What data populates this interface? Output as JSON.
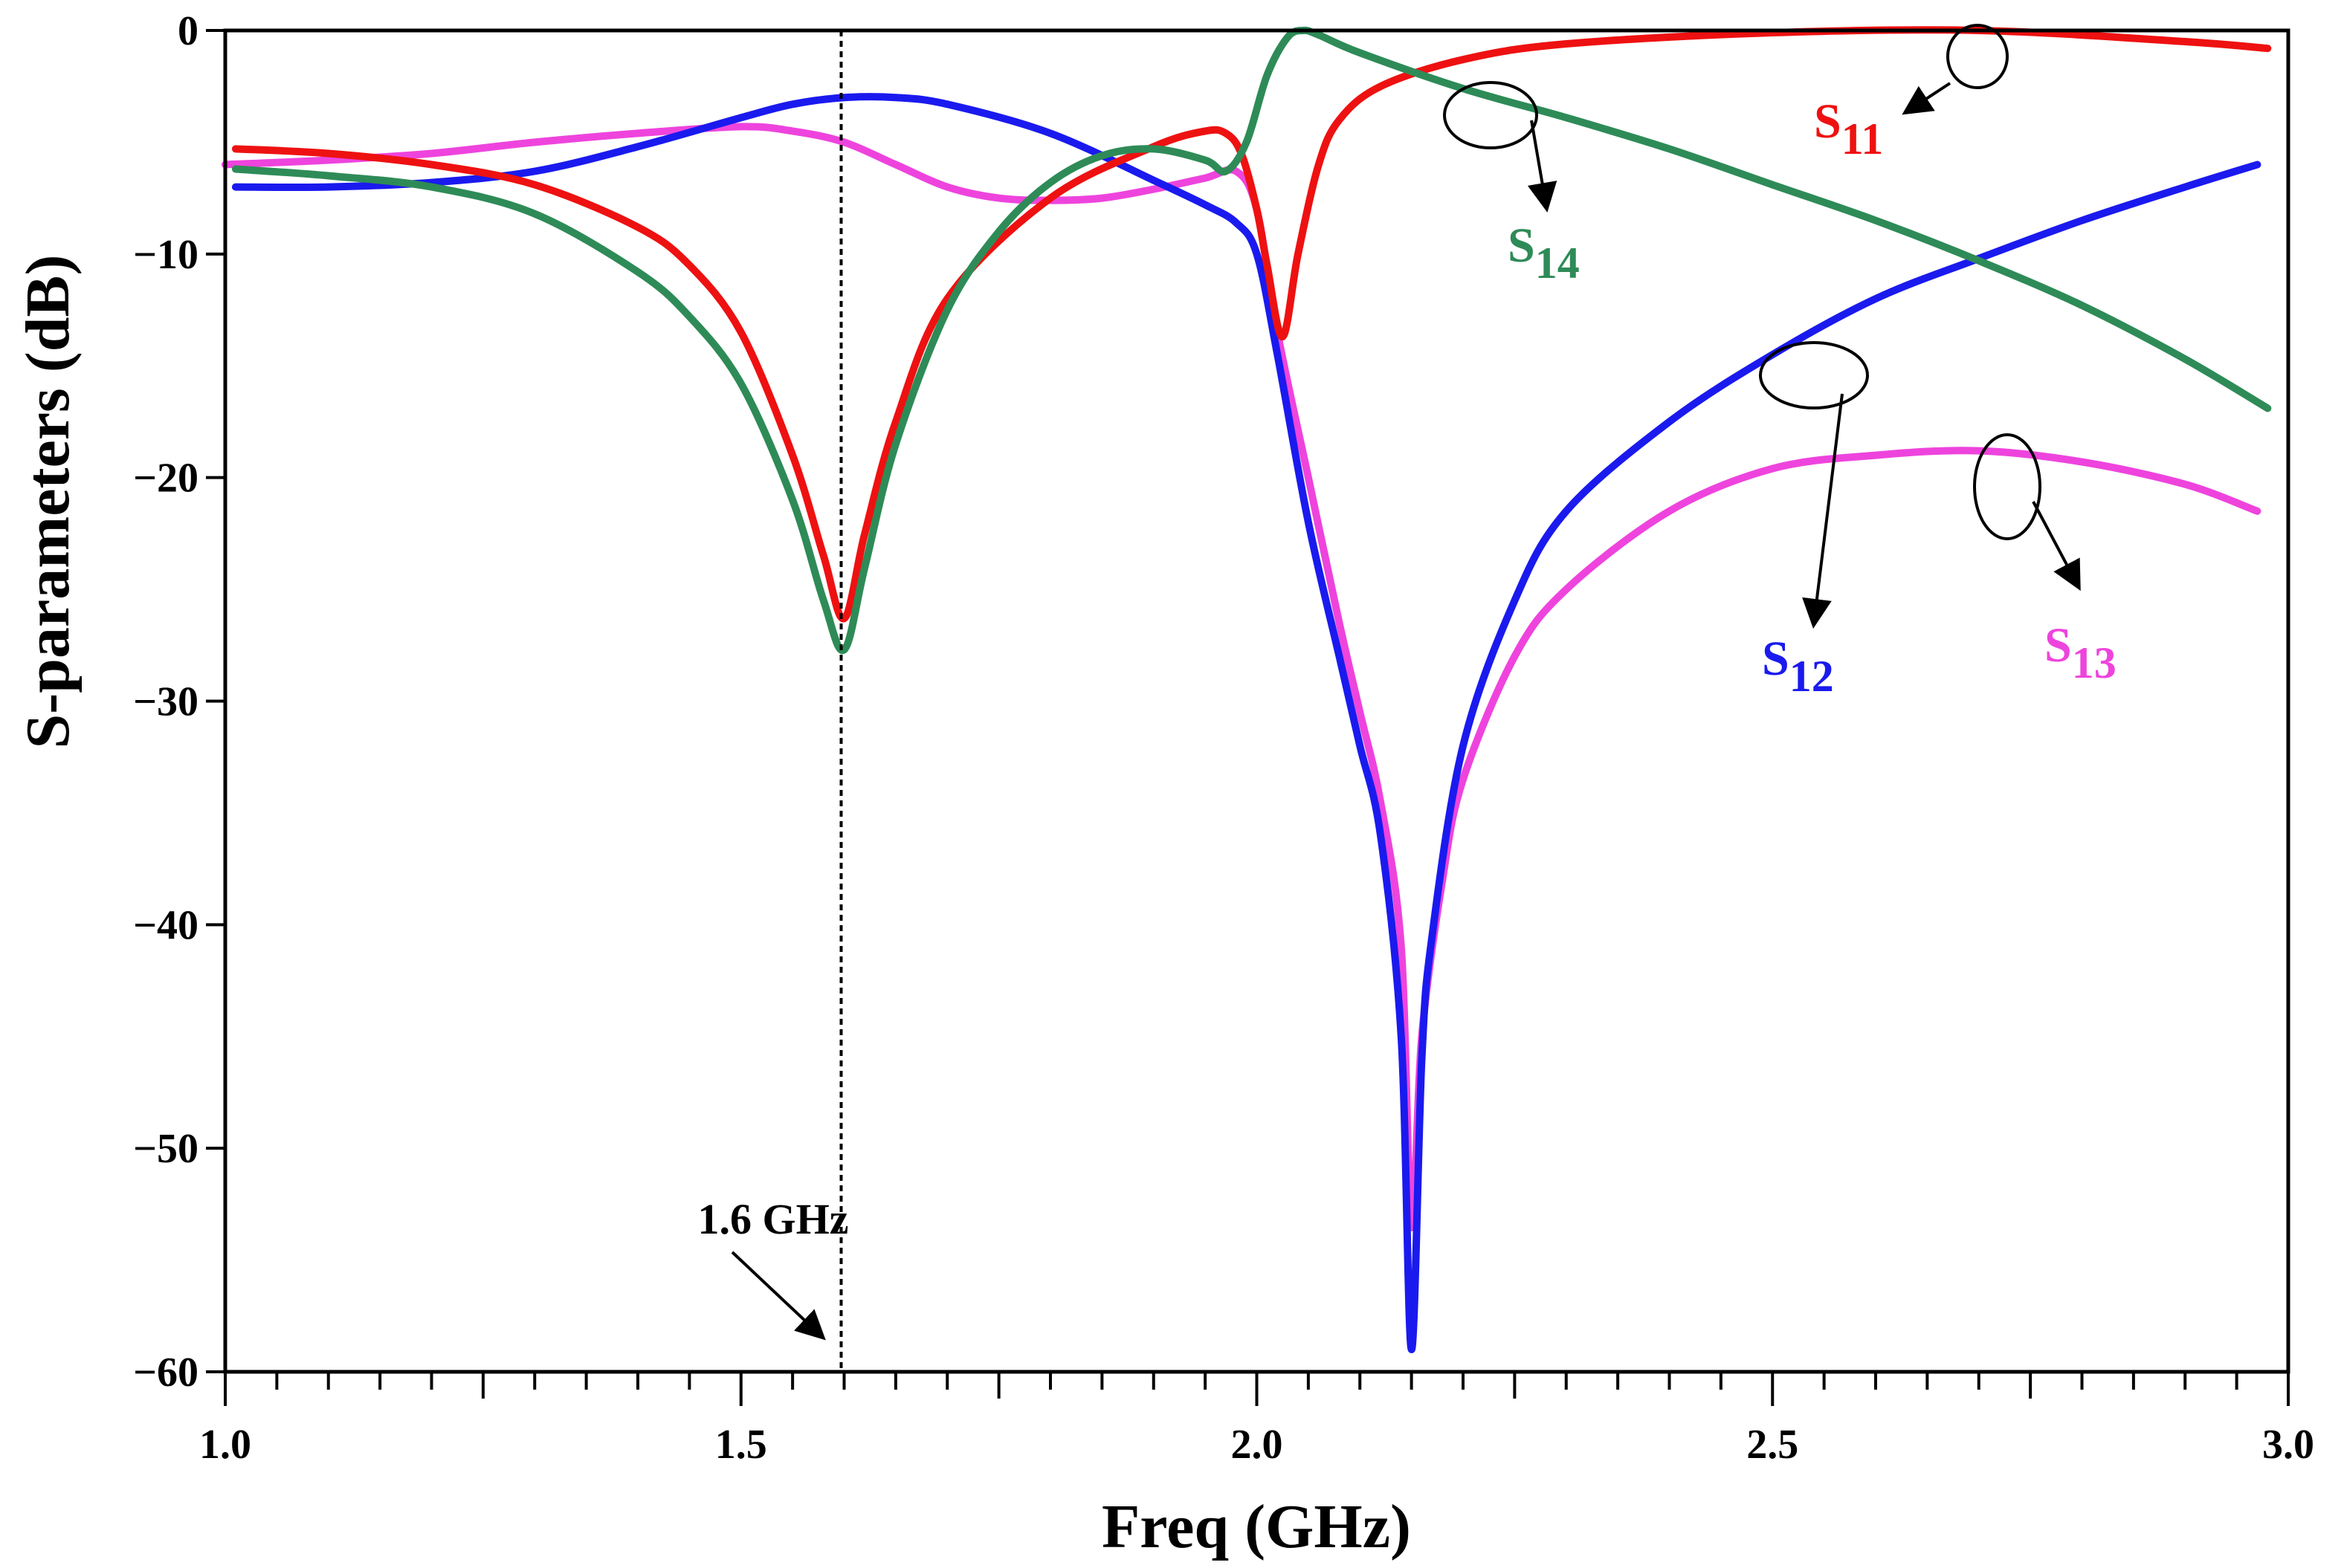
{
  "chart_data": {
    "type": "line",
    "title": "",
    "xlabel": "Freq (GHz)",
    "ylabel": "S-parameters (dB)",
    "xlim": [
      1.0,
      3.0
    ],
    "ylim": [
      -60,
      0
    ],
    "xticks": [
      1.0,
      1.5,
      2.0,
      2.5,
      3.0
    ],
    "xtick_labels": [
      "1.0",
      "1.5",
      "2.0",
      "2.5",
      "3.0"
    ],
    "yticks": [
      0,
      -10,
      -20,
      -30,
      -40,
      -50,
      -60
    ],
    "ytick_labels": [
      "0",
      "−10",
      "−20",
      "−30",
      "−40",
      "−50",
      "−60"
    ],
    "grid": false,
    "marker": {
      "x": 1.6,
      "label": "1.6 GHz"
    },
    "series": [
      {
        "name": "S11",
        "label_main": "S",
        "label_sub": "11",
        "color": "#ee1111",
        "x": [
          1.01,
          1.1,
          1.2,
          1.3,
          1.4,
          1.45,
          1.5,
          1.55,
          1.58,
          1.6,
          1.62,
          1.65,
          1.7,
          1.8,
          1.9,
          1.95,
          1.97,
          1.985,
          2.0,
          2.01,
          2.025,
          2.04,
          2.06,
          2.08,
          2.12,
          2.2,
          2.3,
          2.5,
          2.7,
          2.9,
          2.98
        ],
        "y": [
          -5.3,
          -5.5,
          -6.0,
          -6.9,
          -8.8,
          -10.5,
          -13.5,
          -19.0,
          -23.5,
          -26.3,
          -22.5,
          -17.5,
          -12.0,
          -7.5,
          -5.2,
          -4.5,
          -4.6,
          -5.5,
          -8.0,
          -10.5,
          -13.7,
          -10.0,
          -6.0,
          -4.0,
          -2.5,
          -1.3,
          -0.6,
          -0.1,
          0.0,
          -0.5,
          -0.8
        ]
      },
      {
        "name": "S12",
        "label_main": "S",
        "label_sub": "12",
        "color": "#1a1aee",
        "x": [
          1.01,
          1.1,
          1.2,
          1.3,
          1.4,
          1.5,
          1.55,
          1.6,
          1.65,
          1.7,
          1.8,
          1.9,
          1.95,
          1.98,
          2.0,
          2.02,
          2.05,
          2.08,
          2.1,
          2.12,
          2.14,
          2.15,
          2.16,
          2.17,
          2.2,
          2.25,
          2.3,
          2.4,
          2.5,
          2.6,
          2.7,
          2.8,
          2.9,
          2.97
        ],
        "y": [
          -7.0,
          -7.0,
          -6.8,
          -6.3,
          -5.2,
          -3.9,
          -3.3,
          -3.0,
          -3.0,
          -3.3,
          -4.6,
          -6.7,
          -7.8,
          -8.6,
          -10.0,
          -14.5,
          -22.0,
          -28.0,
          -32.0,
          -36.0,
          -45.0,
          -59.0,
          -46.0,
          -40.5,
          -32.0,
          -25.5,
          -21.5,
          -17.5,
          -14.5,
          -12.0,
          -10.2,
          -8.5,
          -7.0,
          -6.0
        ]
      },
      {
        "name": "S13",
        "label_main": "S",
        "label_sub": "13",
        "color": "#ee44dd",
        "x": [
          1.0,
          1.1,
          1.2,
          1.3,
          1.4,
          1.5,
          1.55,
          1.6,
          1.65,
          1.7,
          1.75,
          1.8,
          1.85,
          1.9,
          1.95,
          1.98,
          2.0,
          2.02,
          2.05,
          2.08,
          2.1,
          2.12,
          2.14,
          2.15,
          2.16,
          2.18,
          2.2,
          2.25,
          2.3,
          2.4,
          2.5,
          2.6,
          2.7,
          2.8,
          2.9,
          2.97
        ],
        "y": [
          -6.0,
          -5.8,
          -5.5,
          -5.0,
          -4.6,
          -4.3,
          -4.5,
          -5.0,
          -6.0,
          -7.0,
          -7.5,
          -7.6,
          -7.5,
          -7.1,
          -6.6,
          -6.3,
          -8.0,
          -13.5,
          -20.0,
          -26.5,
          -30.5,
          -34.5,
          -41.0,
          -53.5,
          -45.0,
          -38.0,
          -33.5,
          -28.0,
          -25.0,
          -21.5,
          -19.6,
          -19.0,
          -18.8,
          -19.3,
          -20.3,
          -21.5
        ]
      },
      {
        "name": "S14",
        "label_main": "S",
        "label_sub": "14",
        "color": "#2e8b57",
        "x": [
          1.01,
          1.1,
          1.2,
          1.3,
          1.4,
          1.45,
          1.5,
          1.55,
          1.58,
          1.6,
          1.62,
          1.65,
          1.7,
          1.75,
          1.8,
          1.85,
          1.9,
          1.95,
          1.97,
          1.99,
          2.01,
          2.03,
          2.045,
          2.06,
          2.1,
          2.2,
          2.3,
          2.4,
          2.5,
          2.6,
          2.7,
          2.8,
          2.9,
          2.98
        ],
        "y": [
          -6.2,
          -6.5,
          -7.0,
          -8.2,
          -10.8,
          -12.8,
          -15.8,
          -21.0,
          -25.5,
          -27.7,
          -24.0,
          -18.5,
          -12.5,
          -9.0,
          -6.8,
          -5.6,
          -5.3,
          -5.8,
          -6.3,
          -5.0,
          -2.0,
          -0.3,
          0.0,
          -0.2,
          -1.0,
          -2.6,
          -3.9,
          -5.3,
          -6.9,
          -8.5,
          -10.3,
          -12.3,
          -14.7,
          -16.9
        ]
      }
    ]
  }
}
